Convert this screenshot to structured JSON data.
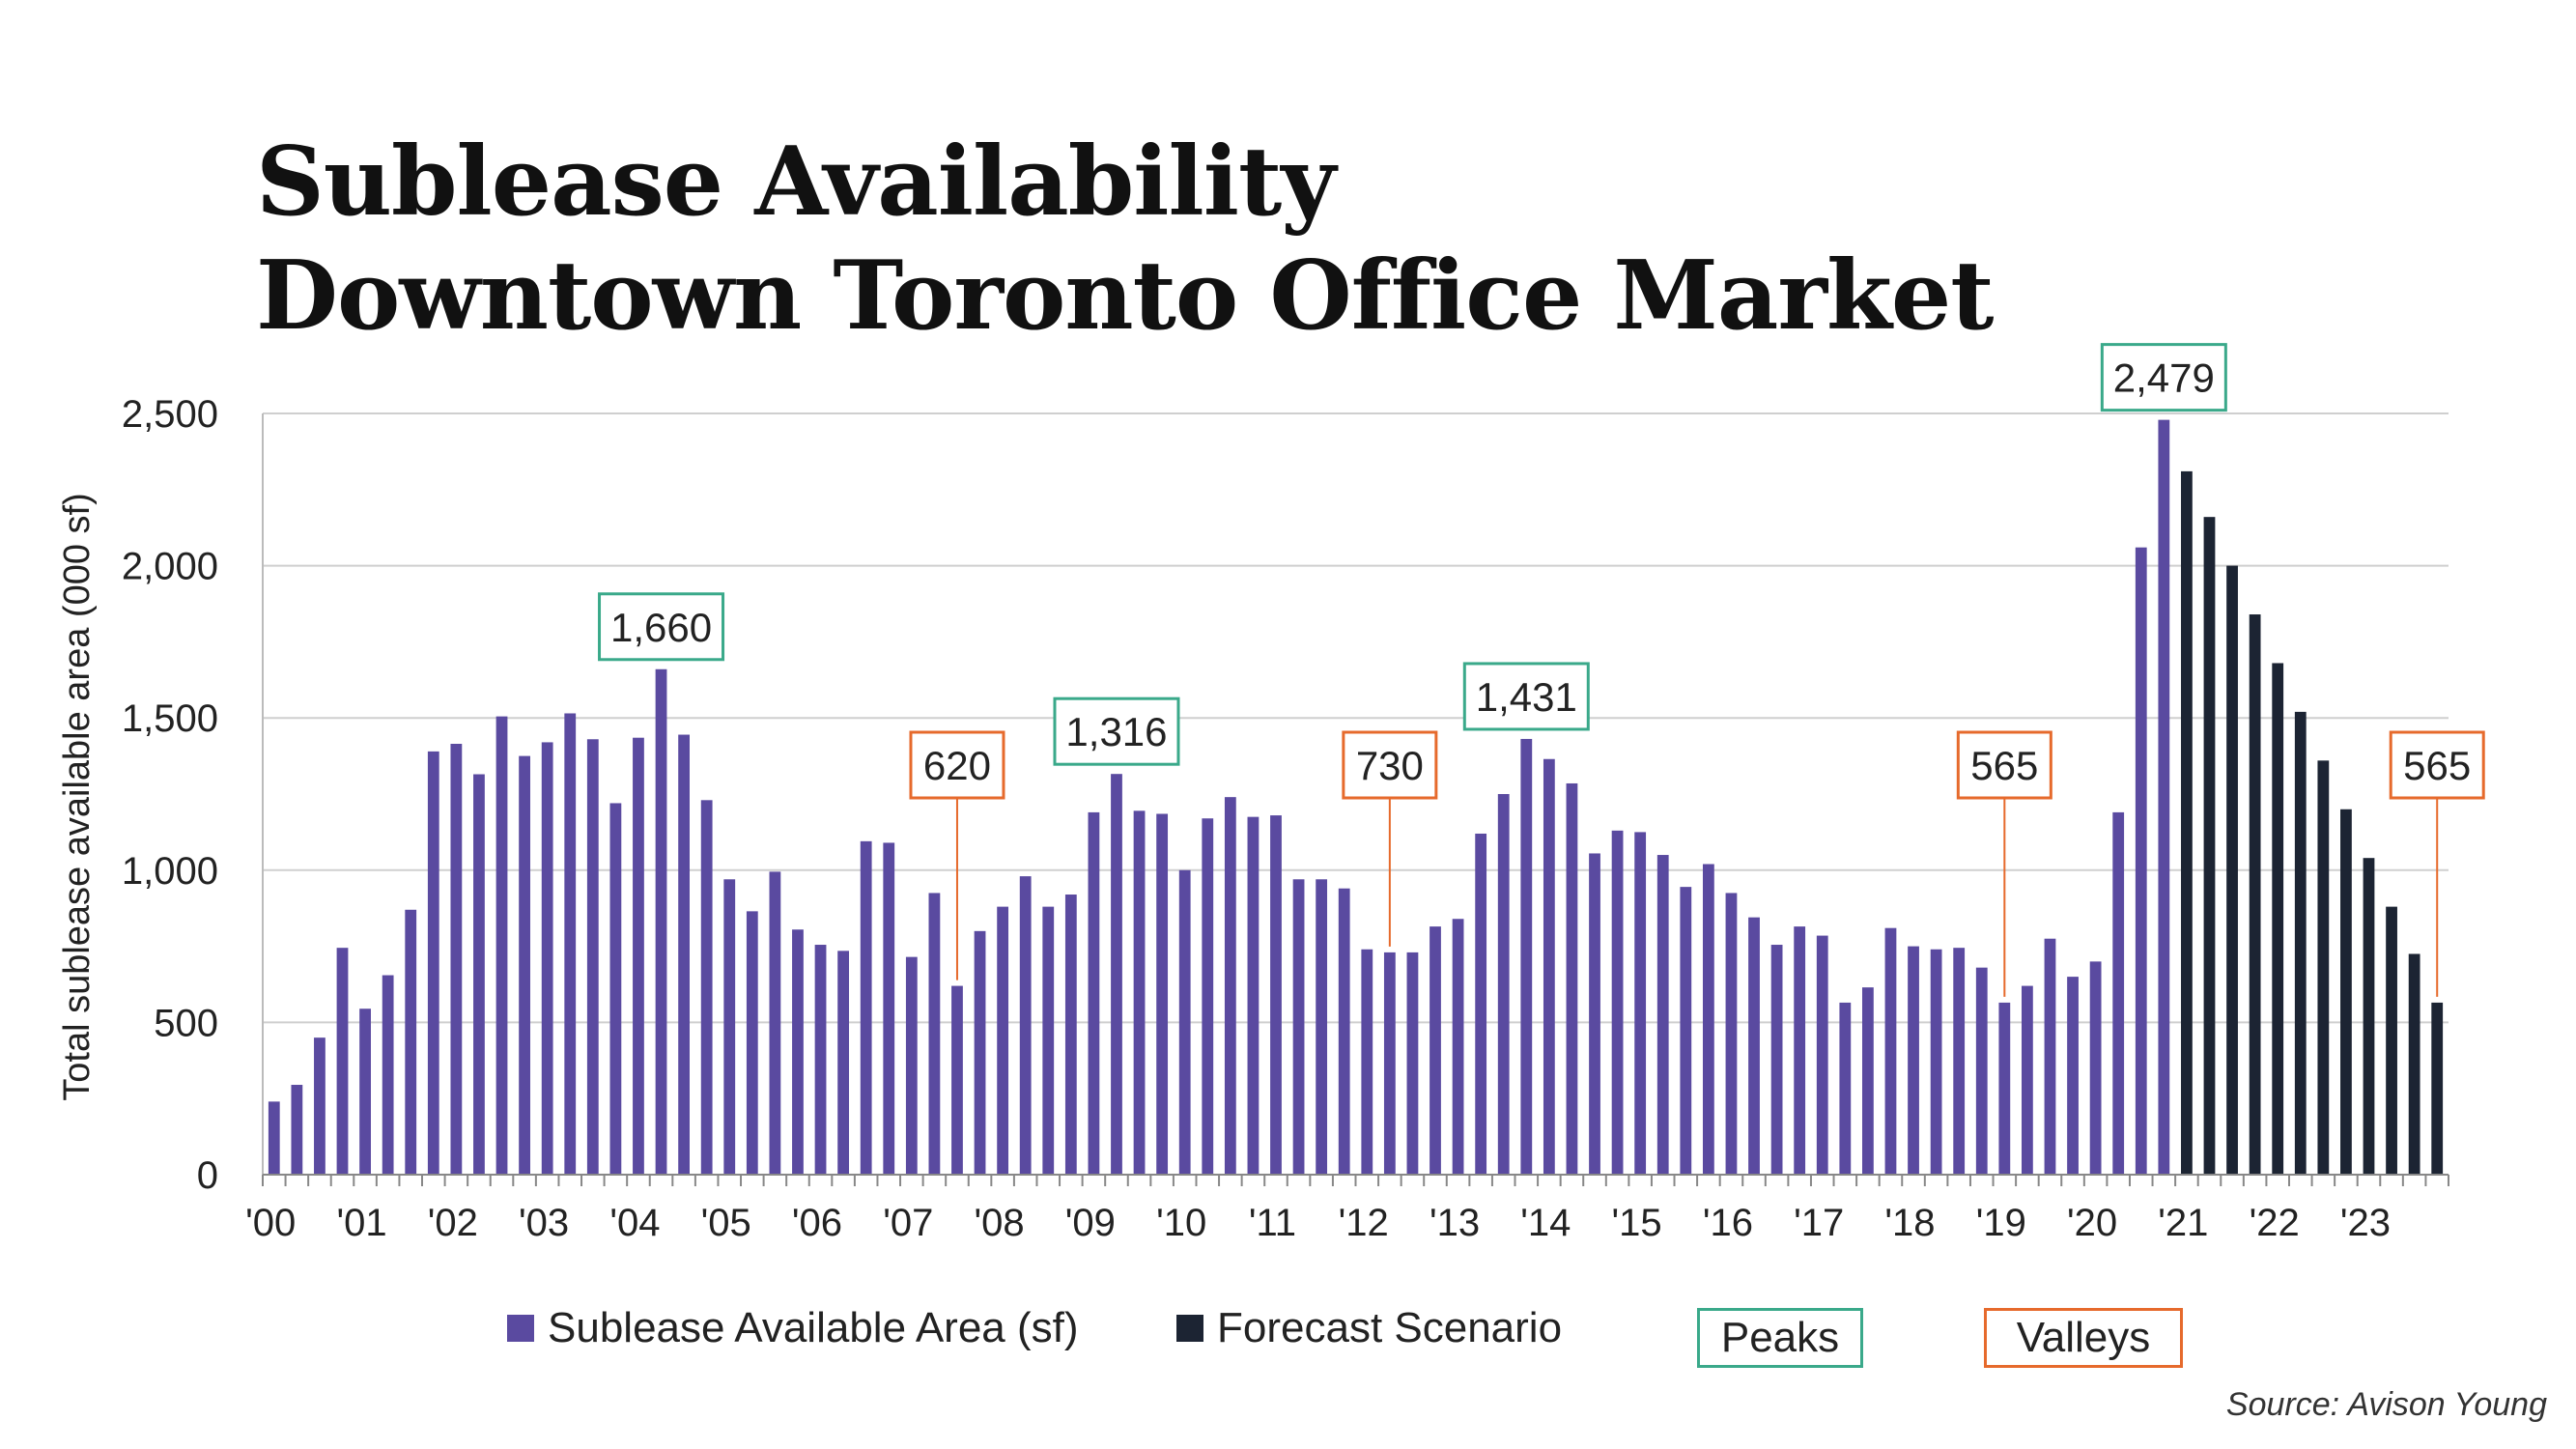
{
  "title": [
    "Sublease Availability",
    "Downtown Toronto Office Market"
  ],
  "source": "Source: Avison Young",
  "colors": {
    "actual": "#5a4aa0",
    "forecast": "#1c2433",
    "peak": "#3aa98a",
    "valley": "#e66a2c",
    "grid": "#cfcfcf"
  },
  "legend": {
    "actual": "Sublease Available Area (sf)",
    "forecast": "Forecast Scenario",
    "peaks": "Peaks",
    "valleys": "Valleys"
  },
  "chart_data": {
    "type": "bar",
    "ylabel": "Total sublease available area (000 sf)",
    "xlabel": "",
    "ylim": [
      0,
      2500
    ],
    "yticks": [
      0,
      500,
      1000,
      1500,
      2000,
      2500
    ],
    "ytick_labels": [
      "0",
      "500",
      "1,000",
      "1,500",
      "2,000",
      "2,500"
    ],
    "x_tick_labels": [
      "'00",
      "'01",
      "'02",
      "'03",
      "'04",
      "'05",
      "'06",
      "'07",
      "'08",
      "'09",
      "'10",
      "'11",
      "'12",
      "'13",
      "'14",
      "'15",
      "'16",
      "'17",
      "'18",
      "'19",
      "'20",
      "'21",
      "'22",
      "'23"
    ],
    "grid": true,
    "legend_position": "bottom",
    "series": [
      {
        "name": "Sublease Available Area (sf)",
        "values": [
          240,
          295,
          450,
          745,
          545,
          655,
          870,
          1390,
          1415,
          1315,
          1505,
          1375,
          1420,
          1515,
          1430,
          1220,
          1435,
          1660,
          1445,
          1230,
          970,
          865,
          995,
          805,
          755,
          735,
          1095,
          1090,
          715,
          925,
          620,
          800,
          880,
          980,
          880,
          920,
          1190,
          1316,
          1195,
          1185,
          1000,
          1170,
          1240,
          1175,
          1180,
          970,
          970,
          940,
          740,
          730,
          730,
          815,
          840,
          1120,
          1250,
          1431,
          1365,
          1285,
          1055,
          1130,
          1125,
          1050,
          945,
          1020,
          925,
          845,
          755,
          815,
          785,
          565,
          615,
          810,
          750,
          740,
          745,
          680,
          565,
          620,
          775,
          650,
          700,
          1190,
          2060,
          2479
        ]
      },
      {
        "name": "Forecast Scenario",
        "values": [
          2310,
          2160,
          2000,
          1840,
          1680,
          1520,
          1360,
          1200,
          1040,
          880,
          725,
          565
        ]
      }
    ],
    "annotations": [
      {
        "label": "1,660",
        "kind": "peak",
        "bar_index": 17
      },
      {
        "label": "620",
        "kind": "valley",
        "bar_index": 30
      },
      {
        "label": "1,316",
        "kind": "peak",
        "bar_index": 37
      },
      {
        "label": "730",
        "kind": "valley",
        "bar_index": 49
      },
      {
        "label": "1,431",
        "kind": "peak",
        "bar_index": 55
      },
      {
        "label": "565",
        "kind": "valley",
        "bar_index": 76
      },
      {
        "label": "2,479",
        "kind": "peak",
        "bar_index": 83
      },
      {
        "label": "565",
        "kind": "valley",
        "bar_index": 95
      }
    ]
  }
}
